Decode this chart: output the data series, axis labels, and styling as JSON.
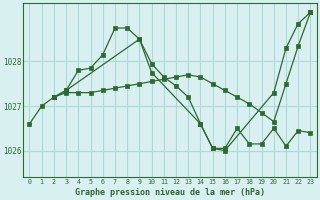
{
  "title": "Graphe pression niveau de la mer (hPa)",
  "bg_color": "#d8f0f0",
  "grid_color": "#b0d8d8",
  "line_color": "#2d6a2d",
  "xlim": [
    -0.5,
    23.5
  ],
  "ylim": [
    1025.4,
    1029.3
  ],
  "yticks": [
    1026,
    1027,
    1028
  ],
  "xticks": [
    0,
    1,
    2,
    3,
    4,
    5,
    6,
    7,
    8,
    9,
    10,
    11,
    12,
    13,
    14,
    15,
    16,
    17,
    18,
    19,
    20,
    21,
    22,
    23
  ],
  "series": [
    {
      "x": [
        0,
        1,
        2,
        3,
        4,
        5,
        6,
        7,
        8,
        9,
        10,
        11,
        12,
        13,
        14,
        15,
        16,
        20,
        21,
        22,
        23
      ],
      "y": [
        1026.6,
        1027.0,
        1027.2,
        1027.35,
        1027.8,
        1027.85,
        1028.15,
        1028.75,
        1028.75,
        1028.5,
        1027.95,
        1027.65,
        1027.45,
        1027.2,
        1026.6,
        1026.05,
        1026.0,
        1027.3,
        1028.3,
        1028.85,
        1029.1
      ]
    },
    {
      "x": [
        2,
        3,
        4,
        5,
        6,
        7,
        8,
        9,
        10,
        11,
        12,
        13,
        14,
        15,
        16,
        17,
        18,
        19,
        20,
        21,
        22,
        23
      ],
      "y": [
        1027.2,
        1027.3,
        1027.3,
        1027.3,
        1027.35,
        1027.4,
        1027.45,
        1027.5,
        1027.55,
        1027.6,
        1027.65,
        1027.7,
        1027.65,
        1027.5,
        1027.35,
        1027.2,
        1027.05,
        1026.85,
        1026.65,
        1027.5,
        1028.35,
        1029.1
      ]
    },
    {
      "x": [
        2,
        3,
        9,
        10,
        14,
        15,
        16,
        17,
        18,
        19,
        20,
        21,
        22,
        23
      ],
      "y": [
        1027.2,
        1027.35,
        1028.5,
        1027.75,
        1026.6,
        1026.05,
        1026.05,
        1026.5,
        1026.15,
        1026.15,
        1026.5,
        1026.1,
        1026.45,
        1026.4
      ]
    }
  ]
}
